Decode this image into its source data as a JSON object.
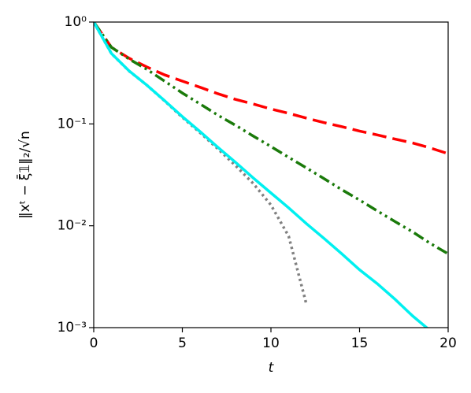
{
  "chart_data": {
    "type": "line",
    "x_label": "t",
    "y_label": "‖xᵗ − ξ̄𝟙‖₂/√n",
    "log_y": true,
    "x": [
      0,
      1,
      2,
      3,
      4,
      5,
      6,
      7,
      8,
      9,
      10,
      11,
      12,
      13,
      14,
      15,
      16,
      17,
      18,
      19,
      20
    ],
    "xlim": [
      0,
      20
    ],
    "xticks": [
      0,
      5,
      10,
      15,
      20
    ],
    "ylim": [
      0.001,
      1
    ],
    "yticks": [
      {
        "value": 1,
        "label": "10⁰"
      },
      {
        "value": 0.1,
        "label": "10⁻¹"
      },
      {
        "value": 0.01,
        "label": "10⁻²"
      },
      {
        "value": 0.001,
        "label": "10⁻³"
      }
    ],
    "series": [
      {
        "color": "#ff0000",
        "dash": "dashed",
        "values": [
          1,
          0.565,
          0.441,
          0.362,
          0.303,
          0.263,
          0.229,
          0.198,
          0.174,
          0.157,
          0.14,
          0.127,
          0.114,
          0.103,
          0.094,
          0.085,
          0.078,
          0.071,
          0.065,
          0.058,
          0.051
        ]
      },
      {
        "color": "#1a7a0a",
        "dash": "dashdot",
        "values": [
          1,
          0.565,
          0.433,
          0.343,
          0.263,
          0.201,
          0.157,
          0.122,
          0.097,
          0.076,
          0.06,
          0.047,
          0.037,
          0.029,
          0.0226,
          0.0179,
          0.014,
          0.011,
          0.0087,
          0.0067,
          0.0053
        ]
      },
      {
        "color": "#808080",
        "dash": "dotted",
        "values": [
          1,
          0.49,
          0.33,
          0.24,
          0.168,
          0.116,
          0.082,
          0.057,
          0.039,
          0.026,
          0.016,
          0.0079,
          0.0017,
          null,
          null,
          null,
          null,
          null,
          null,
          null,
          null
        ]
      },
      {
        "color": "#00f0f0",
        "dash": "solid",
        "values": [
          1,
          0.491,
          0.331,
          0.24,
          0.169,
          0.118,
          0.084,
          0.059,
          0.042,
          0.0295,
          0.021,
          0.015,
          0.0105,
          0.0075,
          0.0053,
          0.0037,
          0.0027,
          0.0019,
          0.0013,
          0.00093,
          null
        ]
      }
    ]
  }
}
